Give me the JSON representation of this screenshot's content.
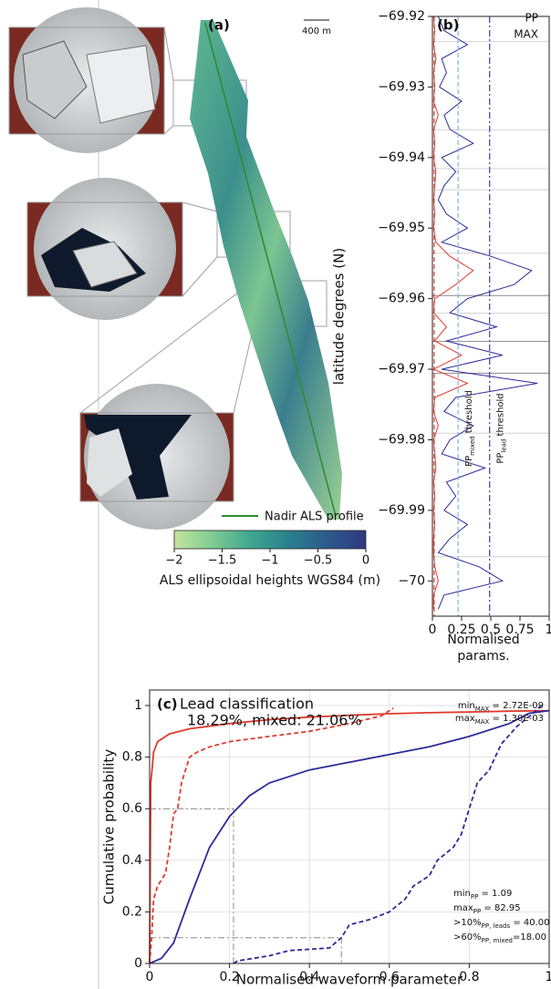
{
  "chart_data": [
    {
      "type": "map",
      "label": "(a)",
      "scale_bar": "400 m",
      "legend": "Nadir ALS profile",
      "line_color": "#2e8b2e",
      "colorbar": {
        "label": "ALS ellipsoidal heights WGS84 (m)",
        "lim": [
          -2,
          0
        ],
        "ticks": [
          {
            "value": -2,
            "label": "−2"
          },
          {
            "value": -1.5,
            "label": "−1.5"
          },
          {
            "value": -1,
            "label": "−1"
          },
          {
            "value": -0.5,
            "label": "−0.5"
          },
          0
        ],
        "colors": [
          "#c3e59b",
          "#7fcb93",
          "#3fa68f",
          "#2a7f8c",
          "#2d5a8a",
          "#2f3782"
        ]
      }
    },
    {
      "type": "line",
      "label": "(b)",
      "ylabel": "latitude degrees (N)",
      "xlabel": [
        "Normalised",
        "params."
      ],
      "ylim": [
        -70.005,
        -69.92
      ],
      "yticks": [
        {
          "value": -69.92,
          "label": "−69.92"
        },
        {
          "value": -69.93,
          "label": "−69.93"
        },
        {
          "value": -69.94,
          "label": "−69.94"
        },
        {
          "value": -69.95,
          "label": "−69.95"
        },
        {
          "value": -69.96,
          "label": "−69.96"
        },
        {
          "value": -69.97,
          "label": "−69.97"
        },
        {
          "value": -69.98,
          "label": "−69.98"
        },
        {
          "value": -69.99,
          "label": "−69.99"
        },
        {
          "value": -70,
          "label": "−70"
        }
      ],
      "xlim": [
        0,
        1
      ],
      "xticks": [
        0,
        0.25,
        0.5,
        0.75,
        1
      ],
      "y": [
        -69.92,
        -69.922,
        -69.924,
        -69.926,
        -69.928,
        -69.93,
        -69.932,
        -69.934,
        -69.936,
        -69.938,
        -69.94,
        -69.942,
        -69.944,
        -69.946,
        -69.948,
        -69.95,
        -69.952,
        -69.954,
        -69.956,
        -69.958,
        -69.96,
        -69.962,
        -69.964,
        -69.966,
        -69.968,
        -69.97,
        -69.972,
        -69.974,
        -69.976,
        -69.978,
        -69.98,
        -69.982,
        -69.984,
        -69.986,
        -69.988,
        -69.99,
        -69.992,
        -69.994,
        -69.996,
        -69.998,
        -70,
        -70.002,
        -70.004
      ],
      "series": [
        {
          "name": "PP",
          "color": "#2b2b9a",
          "values": [
            0.05,
            0.1,
            0.3,
            0.08,
            0.12,
            0.06,
            0.25,
            0.1,
            0.15,
            0.35,
            0.08,
            0.2,
            0.1,
            0.05,
            0.12,
            0.3,
            0.08,
            0.5,
            0.85,
            0.7,
            0.3,
            0.15,
            0.55,
            0.12,
            0.6,
            0.08,
            0.9,
            0.2,
            0.1,
            0.35,
            0.15,
            0.08,
            0.45,
            0.12,
            0.2,
            0.1,
            0.3,
            0.15,
            0.05,
            0.4,
            0.6,
            0.1,
            0.05
          ]
        },
        {
          "name": "MAX",
          "color": "#e03a2e",
          "values": [
            0.01,
            0.02,
            0.01,
            0.03,
            0.01,
            0.02,
            0.01,
            0.05,
            0.01,
            0.02,
            0.01,
            0.03,
            0.02,
            0.01,
            0.02,
            0.01,
            0.03,
            0.15,
            0.35,
            0.2,
            0.02,
            0.01,
            0.12,
            0.02,
            0.25,
            0.01,
            0.3,
            0.02,
            0.01,
            0.05,
            0.01,
            0.02,
            0.03,
            0.01,
            0.02,
            0.01,
            0.02,
            0.01,
            0.01,
            0.02,
            0.05,
            0.01,
            0.01
          ]
        }
      ],
      "lead_color": "#8c8c8c",
      "mixed_color": "#d3d3d3",
      "lead_bands": [
        [
          -69.9535,
          -69.9595
        ],
        [
          -69.964,
          -69.966
        ],
        [
          -69.968,
          -69.9705
        ]
      ],
      "mixed_bands": [
        [
          -69.9225,
          -69.9235
        ],
        [
          -69.934,
          -69.936
        ],
        [
          -69.9395,
          -69.9415
        ],
        [
          -69.943,
          -69.9445
        ],
        [
          -69.9525,
          -69.9535
        ],
        [
          -69.9605,
          -69.962
        ],
        [
          -69.978,
          -69.979
        ],
        [
          -69.9955,
          -69.9965
        ]
      ],
      "thresholds": [
        {
          "value": 0.015,
          "color": "#e03a2e",
          "style": "dashed"
        },
        {
          "value": 0.22,
          "color": "#7fb3e0",
          "style": "dashed",
          "label": {
            "text": "PP",
            "sub": "mixed",
            "rest": " threshold"
          }
        },
        {
          "value": 0.49,
          "color": "#3a3aa8",
          "style": "dashdot",
          "label": {
            "text": "PP",
            "sub": "lead",
            "rest": " threshold"
          }
        }
      ]
    },
    {
      "type": "line",
      "label": "(c)",
      "ylabel": "Cumulative probability",
      "xlabel": "Normalised waveform parameter",
      "title": "Lead classification",
      "subtitle": "18.29%, mixed: 21.06%",
      "xlim": [
        0,
        1
      ],
      "xticks": [
        0,
        0.2,
        0.4,
        0.6,
        0.8,
        1
      ],
      "ylim": [
        0,
        1.06
      ],
      "yticks": [
        0,
        0.2,
        0.4,
        0.6,
        0.8,
        1
      ],
      "grid": true,
      "series": [
        {
          "color": "#e03a2e",
          "style": "solid",
          "x": [
            0,
            0.003,
            0.01,
            0.02,
            0.05,
            0.1,
            0.2,
            0.3,
            0.4,
            0.5,
            0.6,
            0.7,
            0.8,
            0.9,
            1
          ],
          "values": [
            0,
            0.7,
            0.82,
            0.86,
            0.89,
            0.91,
            0.93,
            0.945,
            0.955,
            0.962,
            0.968,
            0.972,
            0.975,
            0.978,
            0.98
          ]
        },
        {
          "color": "#e03a2e",
          "style": "dashed",
          "x": [
            0,
            0.005,
            0.01,
            0.02,
            0.04,
            0.05,
            0.06,
            0.07,
            0.08,
            0.09,
            0.1,
            0.12,
            0.15,
            0.2,
            0.3,
            0.4,
            0.5,
            0.58,
            0.6,
            0.61
          ],
          "values": [
            0,
            0.1,
            0.25,
            0.3,
            0.35,
            0.45,
            0.58,
            0.6,
            0.7,
            0.75,
            0.8,
            0.82,
            0.84,
            0.86,
            0.88,
            0.9,
            0.93,
            0.96,
            0.98,
            0.99
          ]
        },
        {
          "color": "#2b2b9a",
          "style": "solid",
          "x": [
            0,
            0.03,
            0.06,
            0.1,
            0.15,
            0.2,
            0.25,
            0.3,
            0.4,
            0.5,
            0.6,
            0.7,
            0.8,
            0.9,
            0.95,
            1
          ],
          "values": [
            0,
            0.02,
            0.08,
            0.25,
            0.45,
            0.57,
            0.65,
            0.7,
            0.75,
            0.78,
            0.81,
            0.84,
            0.88,
            0.93,
            0.97,
            0.98
          ]
        },
        {
          "color": "#2b2b9a",
          "style": "dashed",
          "x": [
            0.21,
            0.22,
            0.3,
            0.35,
            0.45,
            0.48,
            0.5,
            0.55,
            0.6,
            0.64,
            0.66,
            0.7,
            0.72,
            0.76,
            0.78,
            0.8,
            0.82,
            0.85,
            0.88,
            0.92,
            0.96,
            0.98
          ],
          "values": [
            0,
            0.01,
            0.03,
            0.05,
            0.06,
            0.1,
            0.15,
            0.17,
            0.2,
            0.25,
            0.3,
            0.34,
            0.4,
            0.45,
            0.5,
            0.6,
            0.7,
            0.75,
            0.85,
            0.92,
            0.97,
            1
          ]
        }
      ],
      "guides": [
        {
          "x": 0.21,
          "y": 0.6
        },
        {
          "x": 0.48,
          "y": 0.1
        }
      ],
      "notes_max": [
        {
          "text": "min",
          "sub": "MAX",
          "rest": " = 2.72E-09"
        },
        {
          "text": "max",
          "sub": "MAX",
          "rest": " = 1.30E-03"
        }
      ],
      "notes_pp": [
        {
          "text": "min",
          "sub": "PP",
          "rest": " = 1.09"
        },
        {
          "text": "max",
          "sub": "PP",
          "rest": " = 82.95"
        },
        {
          "text": ">10%",
          "sub": "PP, leads",
          "rest": " = 40.00"
        },
        {
          "text": ">60%",
          "sub": "PP, mixed",
          "rest": "=18.00"
        }
      ]
    }
  ]
}
